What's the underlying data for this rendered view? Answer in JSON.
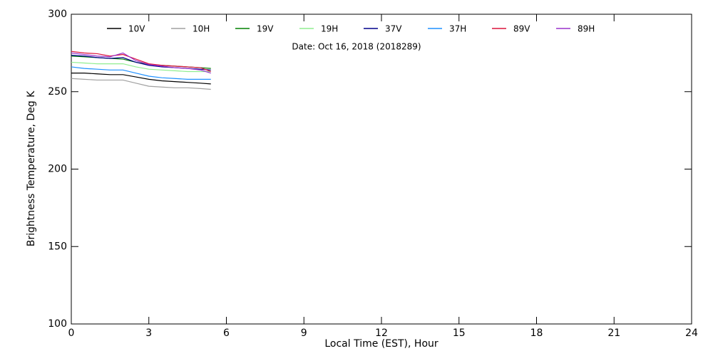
{
  "chart_data": {
    "type": "line",
    "annotation": "Date: Oct 16, 2018 (2018289)",
    "x_label": "Local Time (EST), Hour",
    "y_label": "Brightness Temperature, Deg K",
    "x": [
      0,
      0.5,
      1,
      1.5,
      2,
      2.5,
      3,
      3.5,
      4,
      4.5,
      5,
      5.4
    ],
    "series": [
      {
        "name": "10V",
        "color": "#000000",
        "values": [
          262,
          262,
          261.5,
          261,
          261,
          259.5,
          258,
          257,
          256.5,
          256,
          255.5,
          255
        ]
      },
      {
        "name": "10H",
        "color": "#a0a0a0",
        "values": [
          258.5,
          258,
          257.5,
          257.5,
          257.5,
          255.5,
          253.5,
          253,
          252.5,
          252.5,
          252,
          251.5
        ]
      },
      {
        "name": "19V",
        "color": "#008000",
        "values": [
          273,
          272.5,
          272,
          271.5,
          271,
          269,
          267.5,
          267,
          266.5,
          266,
          265.5,
          265
        ]
      },
      {
        "name": "19H",
        "color": "#90ee90",
        "values": [
          269,
          268.5,
          268,
          268,
          268,
          266,
          264.5,
          264,
          263.5,
          263,
          263,
          263
        ]
      },
      {
        "name": "37V",
        "color": "#00008b",
        "values": [
          273.5,
          273,
          272,
          271.5,
          272,
          269,
          267,
          266,
          265.5,
          265,
          264.5,
          264
        ]
      },
      {
        "name": "37H",
        "color": "#1e90ff",
        "values": [
          266,
          265,
          264.5,
          264,
          264,
          262,
          260,
          259,
          258.5,
          258,
          258,
          258
        ]
      },
      {
        "name": "89V",
        "color": "#dc143c",
        "values": [
          276,
          275,
          274.5,
          273,
          274,
          271,
          268,
          267,
          266.5,
          266,
          265.5,
          263
        ]
      },
      {
        "name": "89H",
        "color": "#9932cc",
        "values": [
          275,
          274,
          273,
          272.5,
          275,
          270,
          267.5,
          266.5,
          265.5,
          265,
          264,
          262
        ]
      }
    ],
    "xlim": [
      0,
      24
    ],
    "xticks": [
      0,
      3,
      6,
      9,
      12,
      15,
      18,
      21,
      24
    ],
    "ylim": [
      100,
      300
    ],
    "yticks": [
      100,
      150,
      200,
      250,
      300
    ]
  }
}
